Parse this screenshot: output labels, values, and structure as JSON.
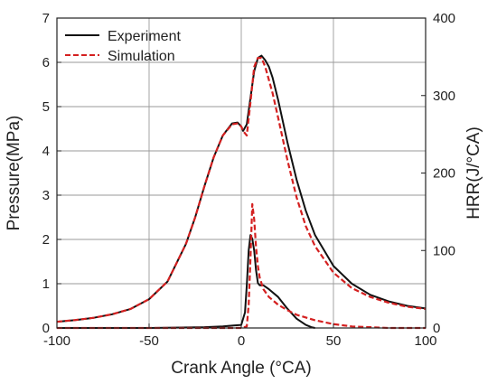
{
  "chart_data": {
    "type": "line",
    "xlabel": "Crank Angle (°CA)",
    "ylabel_left": "Pressure(MPa)",
    "ylabel_right": "HRR(J/°CA)",
    "xlim": [
      -100,
      100
    ],
    "ylim_left": [
      0,
      7
    ],
    "ylim_right": [
      0,
      400
    ],
    "xticks": [
      "-100",
      "-50",
      "0",
      "50",
      "100"
    ],
    "yticks_left": [
      "0",
      "1",
      "2",
      "3",
      "4",
      "5",
      "6",
      "7"
    ],
    "yticks_right": [
      "0",
      "100",
      "200",
      "300",
      "400"
    ],
    "grid": true,
    "legend_position": "top-left",
    "series": [
      {
        "name": "Experiment",
        "axis": "left",
        "color": "#111111",
        "dash": "solid",
        "x": [
          -100,
          -90,
          -80,
          -70,
          -60,
          -50,
          -40,
          -30,
          -25,
          -20,
          -15,
          -10,
          -5,
          -2,
          0,
          1,
          3,
          5,
          7,
          9,
          11,
          13,
          15,
          17,
          20,
          25,
          30,
          35,
          40,
          50,
          60,
          70,
          80,
          90,
          100
        ],
        "y": [
          0.14,
          0.18,
          0.23,
          0.31,
          0.43,
          0.65,
          1.05,
          1.9,
          2.5,
          3.2,
          3.85,
          4.35,
          4.62,
          4.64,
          4.55,
          4.45,
          4.6,
          5.2,
          5.8,
          6.1,
          6.15,
          6.05,
          5.9,
          5.65,
          5.15,
          4.2,
          3.35,
          2.65,
          2.1,
          1.4,
          1.0,
          0.75,
          0.6,
          0.5,
          0.44
        ]
      },
      {
        "name": "Simulation",
        "axis": "left",
        "color": "#d42020",
        "dash": "dashed",
        "x": [
          -100,
          -90,
          -80,
          -70,
          -60,
          -50,
          -40,
          -30,
          -25,
          -20,
          -15,
          -10,
          -5,
          -2,
          0,
          1,
          3,
          5,
          7,
          9,
          11,
          13,
          15,
          17,
          20,
          25,
          30,
          35,
          40,
          50,
          60,
          70,
          80,
          90,
          100
        ],
        "y": [
          0.14,
          0.18,
          0.23,
          0.31,
          0.43,
          0.65,
          1.05,
          1.9,
          2.5,
          3.2,
          3.85,
          4.35,
          4.6,
          4.62,
          4.55,
          4.45,
          4.35,
          5.1,
          5.9,
          6.1,
          6.1,
          5.9,
          5.6,
          5.3,
          4.75,
          3.8,
          2.95,
          2.3,
          1.85,
          1.25,
          0.9,
          0.7,
          0.57,
          0.48,
          0.43
        ]
      },
      {
        "name": "Experiment",
        "axis": "right",
        "color": "#111111",
        "dash": "solid",
        "x": [
          -100,
          -50,
          -20,
          -10,
          -5,
          0,
          2,
          3,
          4,
          5,
          6,
          7,
          8,
          9,
          10,
          12,
          15,
          20,
          25,
          30,
          35,
          38,
          40
        ],
        "y": [
          0,
          0,
          1,
          2,
          3,
          4,
          20,
          55,
          100,
          120,
          115,
          100,
          75,
          58,
          55,
          55,
          50,
          40,
          25,
          12,
          4,
          1,
          0
        ]
      },
      {
        "name": "Simulation",
        "axis": "right",
        "color": "#d42020",
        "dash": "dashed",
        "x": [
          -100,
          -20,
          0,
          3,
          4,
          5,
          6,
          7,
          8,
          9,
          10,
          12,
          15,
          20,
          25,
          30,
          40,
          50,
          60,
          70,
          80,
          100
        ],
        "y": [
          0,
          0,
          0,
          2,
          30,
          90,
          160,
          140,
          105,
          80,
          65,
          50,
          40,
          30,
          23,
          17,
          10,
          5,
          2,
          1,
          0,
          0
        ]
      }
    ]
  }
}
